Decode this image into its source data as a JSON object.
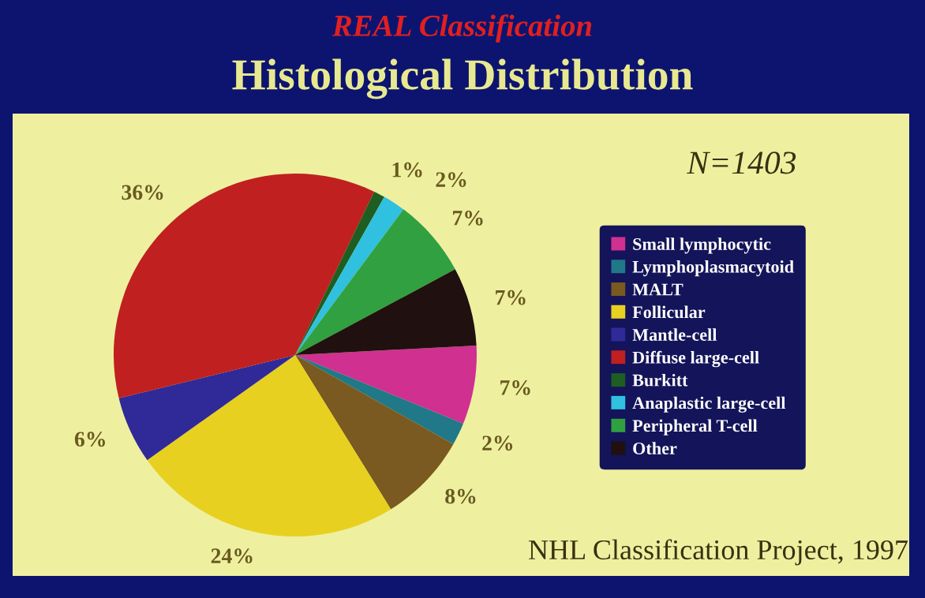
{
  "chart_data": {
    "type": "pie",
    "subtitle": "REAL Classification",
    "title": "Histological Distribution",
    "categories": [
      "Small lymphocytic",
      "Lymphoplasmacytoid",
      "MALT",
      "Follicular",
      "Mantle-cell",
      "Diffuse large-cell",
      "Burkitt",
      "Anaplastic large-cell",
      "Peripheral T-cell",
      "Other"
    ],
    "values": [
      7,
      2,
      8,
      24,
      6,
      36,
      1,
      2,
      7,
      7
    ],
    "value_labels": [
      "7%",
      "2%",
      "8%",
      "24%",
      "6%",
      "36%",
      "1%",
      "2%",
      "7%",
      "7%"
    ],
    "colors": [
      "#d03090",
      "#207888",
      "#7a5a20",
      "#e8d020",
      "#302a98",
      "#c02020",
      "#1e5e22",
      "#30c0e0",
      "#30a040",
      "#201010"
    ],
    "legend": "right",
    "annotations": [
      "N=1403",
      "NHL Classification Project, 1997"
    ]
  }
}
